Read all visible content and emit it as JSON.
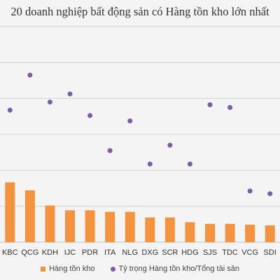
{
  "colors": {
    "bar": "#f5923e",
    "dot": "#7b5ca8",
    "grid": "#d4d4d4",
    "label": "#333333"
  },
  "chart_data": {
    "type": "bar",
    "title": "20 doanh nghiệp bất động sản có Hàng tồn kho lớn nhất",
    "categories": [
      "KBC",
      "QCG",
      "KDH",
      "IJC",
      "PDR",
      "ITA",
      "NLG",
      "DXG",
      "SCR",
      "HDG",
      "SJS",
      "TDC",
      "VCG",
      "SDI"
    ],
    "grid": true,
    "y_gridlines": 6,
    "series": [
      {
        "name": "Hàng tồn kho",
        "type": "bar",
        "values": [
          7.5,
          6.5,
          4.6,
          4.0,
          4.0,
          3.8,
          3.8,
          3.1,
          3.1,
          2.5,
          2.3,
          2.3,
          2.2,
          2.1
        ]
      },
      {
        "name": "Tỷ trọng Hàng tồn kho/Tổng tài sản",
        "type": "scatter",
        "values": [
          49,
          62,
          52,
          55,
          47,
          34,
          45,
          29,
          36,
          29,
          51,
          50,
          19,
          18
        ]
      }
    ]
  }
}
